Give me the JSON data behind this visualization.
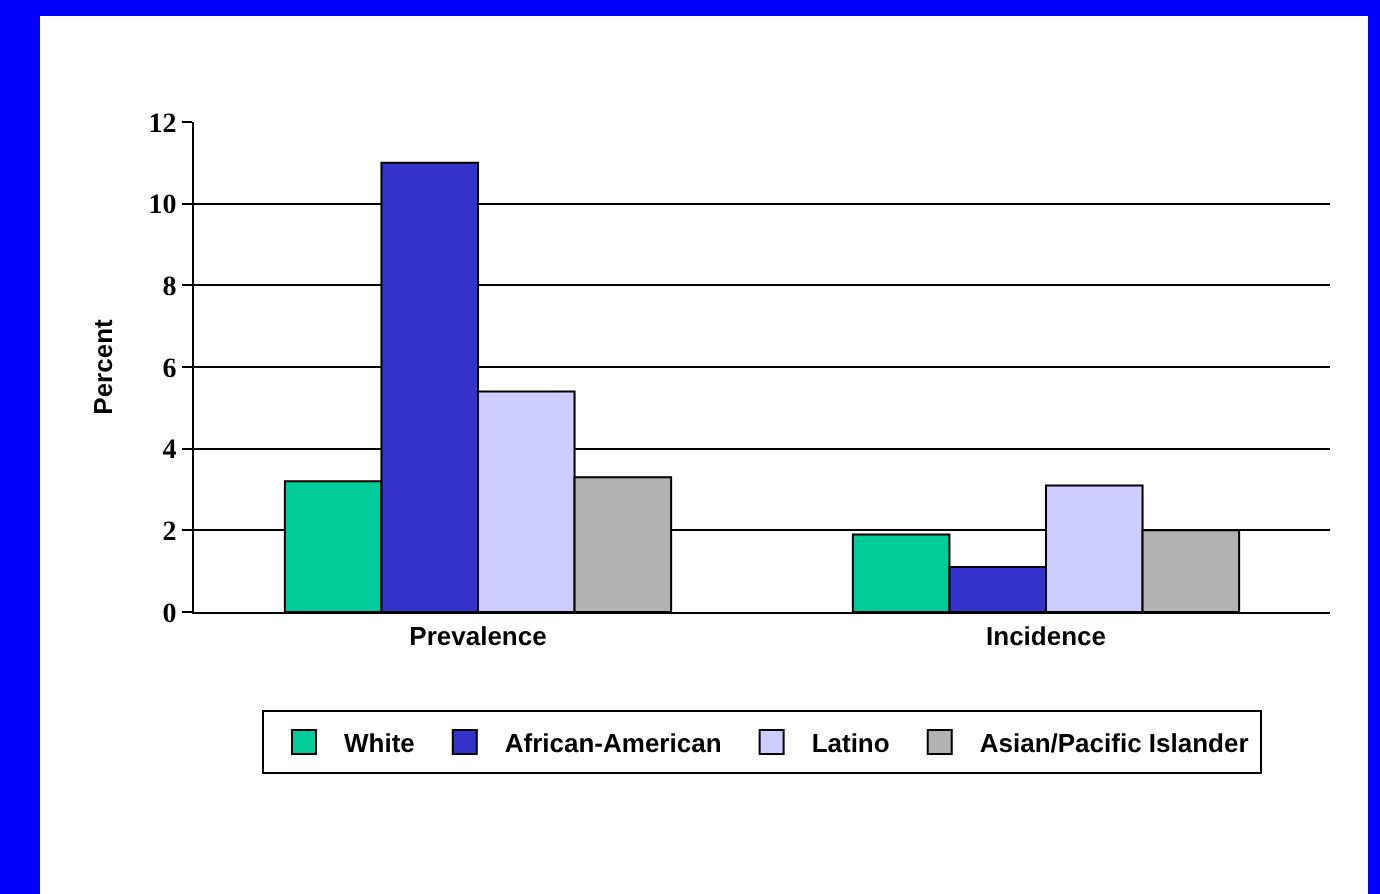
{
  "chart_data": {
    "type": "bar",
    "ylabel": "Percent",
    "categories": [
      "Prevalence",
      "Incidence"
    ],
    "series": [
      {
        "name": "White",
        "color": "#00cc99",
        "values": [
          3.2,
          1.9
        ]
      },
      {
        "name": "African-American",
        "color": "#3333cc",
        "values": [
          11.0,
          1.1
        ]
      },
      {
        "name": "Latino",
        "color": "#ccccff",
        "values": [
          5.4,
          3.1
        ]
      },
      {
        "name": "Asian/Pacific Islander",
        "color": "#b2b2b2",
        "values": [
          3.3,
          2.0
        ]
      }
    ],
    "ylim": [
      0,
      12
    ],
    "yticks": [
      0,
      2,
      4,
      6,
      8,
      10,
      12
    ],
    "grid": "y",
    "legend": "bottom"
  }
}
